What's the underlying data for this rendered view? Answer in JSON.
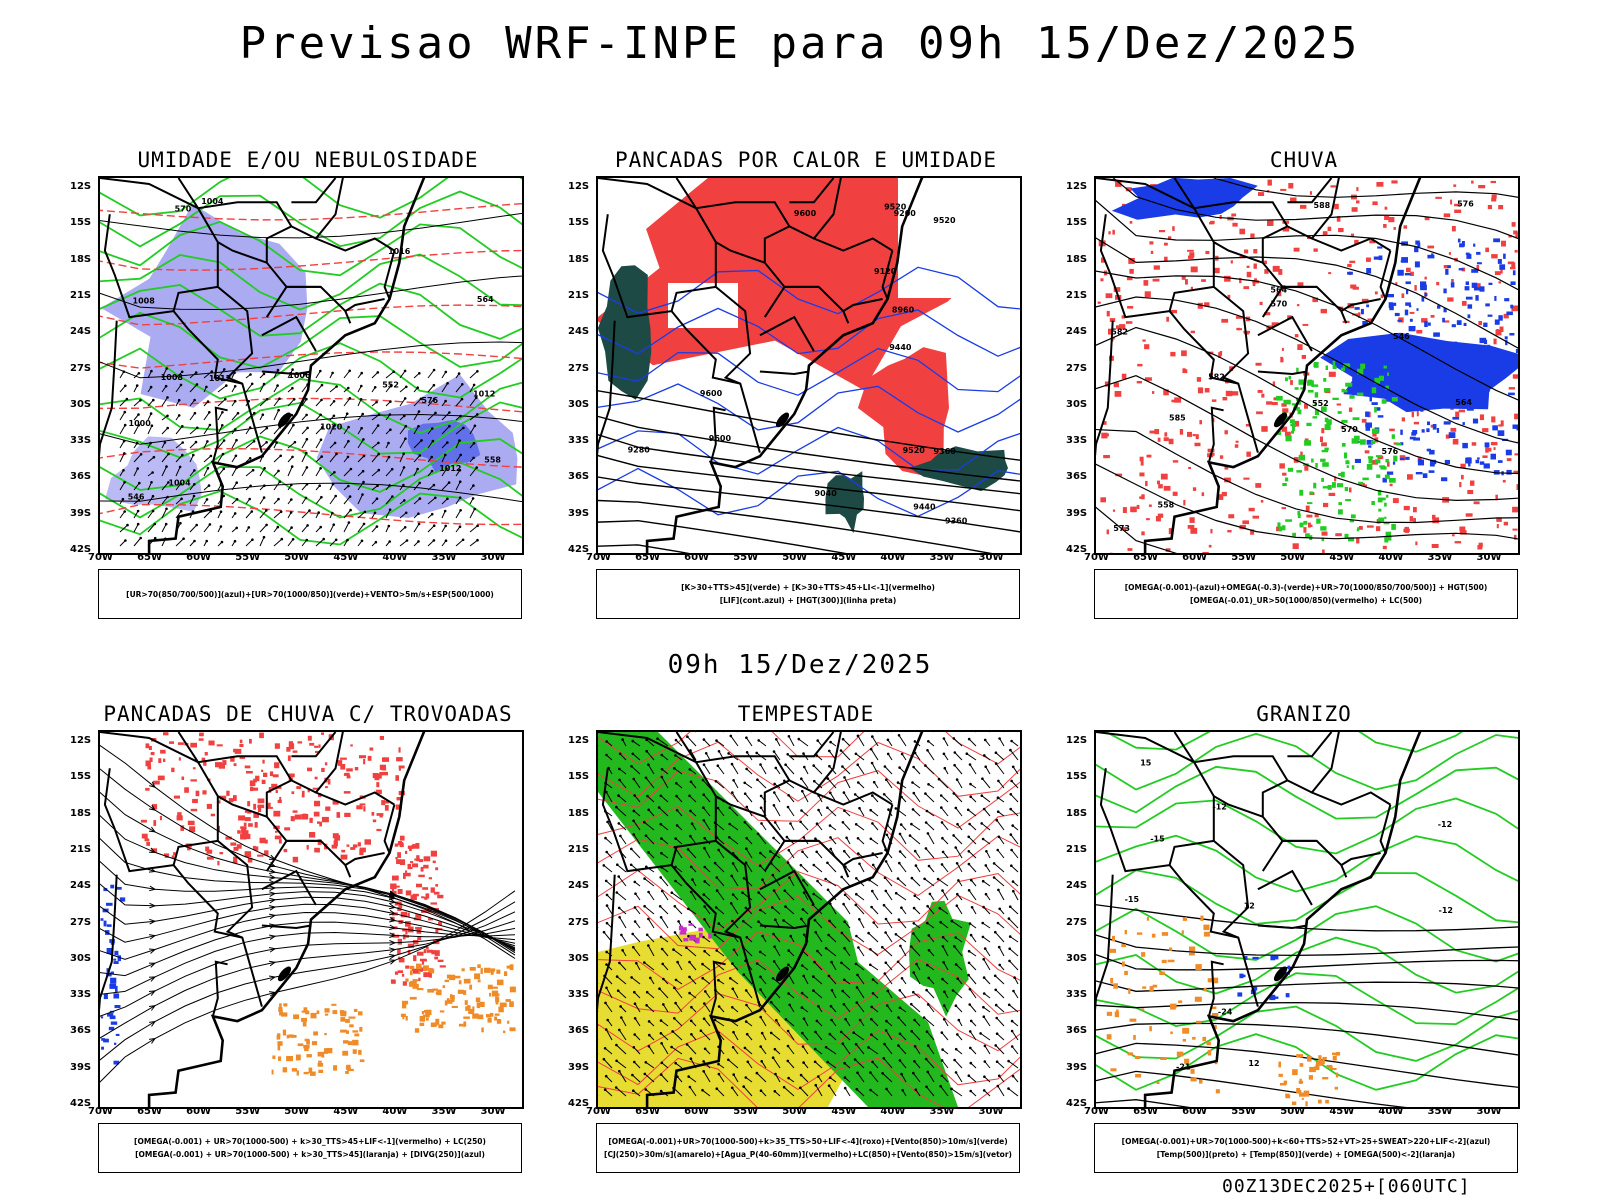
{
  "header": {
    "title": "Previsao WRF-INPE  para 09h 15/Dez/2025",
    "mid_date": "09h 15/Dez/2025",
    "run": "00Z13DEC2025+[060UTC]"
  },
  "axes": {
    "lat_ticks": [
      "12S",
      "15S",
      "18S",
      "21S",
      "24S",
      "27S",
      "30S",
      "33S",
      "36S",
      "39S",
      "42S"
    ],
    "lon_ticks": [
      "70W",
      "65W",
      "60W",
      "55W",
      "50W",
      "45W",
      "40W",
      "35W",
      "30W"
    ]
  },
  "colors": {
    "red": "#f04040",
    "green": "#22cc22",
    "blue": "#1a3ce6",
    "lightblue": "#9c9cf0",
    "orange": "#f08c28",
    "yellow": "#e6dc32",
    "darkteal": "#1e4a46",
    "purple": "#c830c8"
  },
  "panels": [
    {
      "title": "UMIDADE E/OU NEBULOSIDADE",
      "legend": [
        "[UR>70(850/700/500)](azul)+[UR>70(1000/850)](verde)+VENTO>5m/s+ESP(500/1000)"
      ],
      "contour_labels": [
        "1012",
        "1012",
        "1008",
        "1008",
        "1004",
        "1004",
        "1000",
        "1016",
        "1020",
        "1012",
        "576",
        "570",
        "564",
        "558",
        "552",
        "546",
        "1006"
      ]
    },
    {
      "title": "PANCADAS POR CALOR E UMIDADE",
      "legend": [
        "[K>30+TTS>45](verde) + [K>30+TTS>45+LI<-1](vermelho)",
        "[LIF](cont.azul) + [HGT(300)](linha preta)"
      ],
      "contour_labels": [
        "9600",
        "9520",
        "9520",
        "9440",
        "9360",
        "9280",
        "9200",
        "9120",
        "9040",
        "8960",
        "9440",
        "9360",
        "9600",
        "9520",
        "9600"
      ]
    },
    {
      "title": "CHUVA",
      "legend": [
        "[OMEGA(-0.001)-(azul)+OMEGA(-0.3)-(verde)+UR>70(1000/850/700/500)] + HGT(500)",
        "[OMEGA(-0.01)_UR>50(1000/850)(vermelho) + LC(500)"
      ],
      "contour_labels": [
        "582",
        "582",
        "576",
        "570",
        "564",
        "558",
        "552",
        "546",
        "576",
        "570",
        "573",
        "564",
        "588",
        "585"
      ]
    },
    {
      "title": "PANCADAS DE CHUVA C/ TROVOADAS",
      "legend": [
        "[OMEGA(-0.001) + UR>70(1000-500) + k>30_TTS>45+LIF<-1](vermelho) + LC(250)",
        "[OMEGA(-0.001) + UR>70(1000-500) + k>30_TTS>45](laranja) + [DIVG(250)](azul)"
      ],
      "contour_labels": []
    },
    {
      "title": "TEMPESTADE",
      "legend": [
        "[OMEGA(-0.001)+UR>70(1000-500)+k>35_TTS>50+LIF<-4](roxo)+[Vento(850)>10m/s](verde)",
        "[CJ(250)>30m/s](amarelo)+[Agua_P(40-60mm)](vermelho)+LC(850)+[Vento(850)>15m/s](vetor)"
      ],
      "contour_labels": []
    },
    {
      "title": "GRANIZO",
      "legend": [
        "[OMEGA(-0.001)+UR>70(1000-500)+k<60+TTS>52+VT>25+SWEAT>220+LIF<-2](azul)",
        "[Temp(500)](preto) + [Temp(850)](verde) + [OMEGA(500)<-2](laranja)"
      ],
      "contour_labels": [
        "-12",
        "-12",
        "-15",
        "-15",
        "-21",
        "-24",
        "-12",
        "12",
        "12",
        "15"
      ]
    }
  ]
}
